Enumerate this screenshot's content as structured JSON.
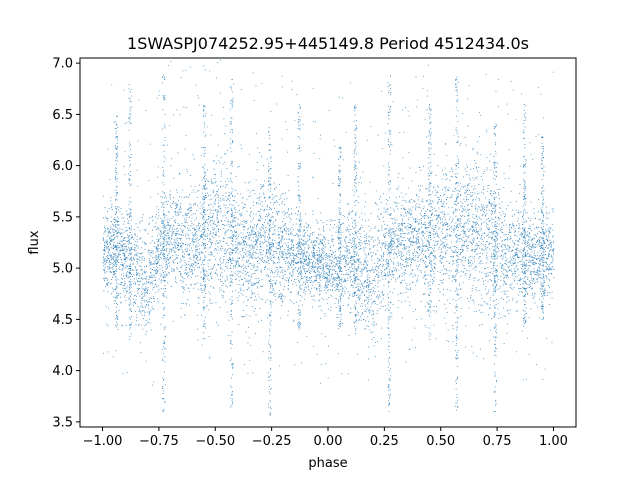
{
  "chart_data": {
    "type": "scatter",
    "title": "1SWASPJ074252.95+445149.8 Period 4512434.0s",
    "xlabel": "phase",
    "ylabel": "flux",
    "xlim": [
      -1.1,
      1.1
    ],
    "ylim": [
      3.45,
      7.05
    ],
    "grid": false,
    "legend": "none",
    "x_ticks": [
      -1.0,
      -0.75,
      -0.5,
      -0.25,
      0.0,
      0.25,
      0.5,
      0.75,
      1.0
    ],
    "x_tick_labels": [
      "−1.00",
      "−0.75",
      "−0.50",
      "−0.25",
      "0.00",
      "0.25",
      "0.50",
      "0.75",
      "1.00"
    ],
    "y_ticks": [
      3.5,
      4.0,
      4.5,
      5.0,
      5.5,
      6.0,
      6.5,
      7.0
    ],
    "y_tick_labels": [
      "3.5",
      "4.0",
      "4.5",
      "5.0",
      "5.5",
      "6.0",
      "6.5",
      "7.0"
    ],
    "marker_color": "#1f77b4",
    "series": [
      {
        "x": [
          -1.0,
          -0.95,
          -0.9,
          -0.85,
          -0.8,
          -0.75,
          -0.7,
          -0.65,
          -0.6,
          -0.55,
          -0.5,
          -0.45,
          -0.4,
          -0.35,
          -0.3,
          -0.25,
          -0.2,
          -0.15,
          -0.1,
          -0.05,
          0.0,
          0.05,
          0.1,
          0.15,
          0.2,
          0.25,
          0.3,
          0.35,
          0.4,
          0.45,
          0.5,
          0.55,
          0.6,
          0.65,
          0.7,
          0.75,
          0.8,
          0.85,
          0.9,
          0.95,
          1.0
        ],
        "median": [
          5.15,
          5.2,
          5.1,
          4.95,
          4.85,
          5.2,
          5.3,
          5.25,
          5.3,
          5.25,
          5.35,
          5.3,
          5.2,
          5.1,
          5.25,
          5.2,
          5.15,
          5.1,
          5.1,
          5.05,
          5.0,
          5.0,
          5.1,
          4.95,
          4.85,
          5.2,
          5.3,
          5.25,
          5.3,
          5.25,
          5.35,
          5.3,
          5.4,
          5.35,
          5.3,
          5.2,
          5.15,
          5.1,
          5.1,
          5.1,
          5.15
        ],
        "low": [
          4.85,
          4.9,
          4.75,
          4.55,
          4.5,
          4.8,
          4.9,
          4.85,
          4.85,
          4.8,
          4.8,
          4.75,
          4.75,
          4.7,
          4.7,
          4.7,
          4.8,
          4.8,
          4.8,
          4.75,
          4.7,
          4.7,
          4.7,
          4.55,
          4.5,
          4.8,
          4.9,
          4.85,
          4.85,
          4.8,
          4.8,
          4.75,
          4.8,
          4.75,
          4.7,
          4.7,
          4.75,
          4.75,
          4.8,
          4.8,
          4.85
        ],
        "high": [
          5.5,
          5.6,
          5.55,
          5.4,
          5.3,
          5.6,
          5.7,
          5.75,
          5.8,
          5.85,
          5.95,
          5.9,
          5.75,
          5.6,
          5.7,
          5.65,
          5.55,
          5.45,
          5.4,
          5.35,
          5.3,
          5.3,
          5.5,
          5.45,
          5.35,
          5.6,
          5.7,
          5.65,
          5.7,
          5.75,
          5.85,
          5.9,
          5.95,
          5.95,
          5.9,
          5.75,
          5.6,
          5.55,
          5.5,
          5.5,
          5.5
        ]
      }
    ],
    "spikes": [
      {
        "x": -0.94,
        "min": 4.4,
        "max": 6.5
      },
      {
        "x": -0.88,
        "min": 4.3,
        "max": 6.8
      },
      {
        "x": -0.73,
        "min": 3.6,
        "max": 6.9
      },
      {
        "x": -0.55,
        "min": 4.3,
        "max": 6.6
      },
      {
        "x": -0.43,
        "min": 3.6,
        "max": 6.9
      },
      {
        "x": -0.26,
        "min": 3.55,
        "max": 6.4
      },
      {
        "x": -0.13,
        "min": 4.4,
        "max": 6.6
      },
      {
        "x": 0.05,
        "min": 4.4,
        "max": 6.2
      },
      {
        "x": 0.12,
        "min": 4.3,
        "max": 6.6
      },
      {
        "x": 0.27,
        "min": 3.6,
        "max": 6.9
      },
      {
        "x": 0.45,
        "min": 4.3,
        "max": 6.6
      },
      {
        "x": 0.57,
        "min": 3.6,
        "max": 6.9
      },
      {
        "x": 0.74,
        "min": 3.55,
        "max": 6.5
      },
      {
        "x": 0.87,
        "min": 4.4,
        "max": 6.6
      },
      {
        "x": 0.95,
        "min": 4.5,
        "max": 6.3
      }
    ]
  }
}
